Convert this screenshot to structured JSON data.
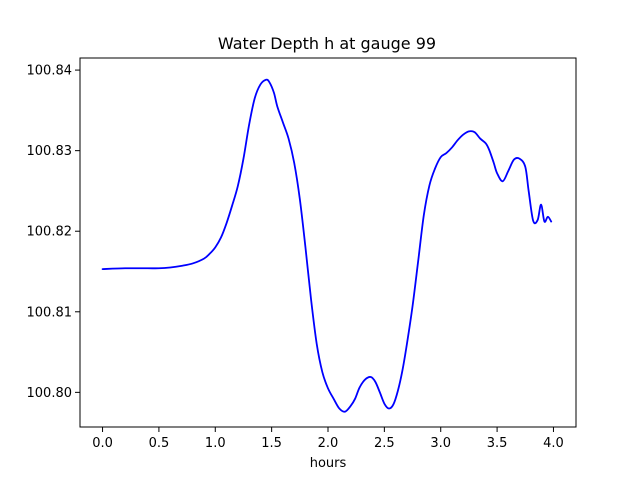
{
  "chart_data": {
    "type": "line",
    "title": "Water Depth h at gauge 99",
    "xlabel": "hours",
    "ylabel": "",
    "xlim": [
      -0.2,
      4.2
    ],
    "ylim": [
      100.7957,
      100.8415
    ],
    "xticks": [
      0.0,
      0.5,
      1.0,
      1.5,
      2.0,
      2.5,
      3.0,
      3.5,
      4.0
    ],
    "xtick_labels": [
      "0.0",
      "0.5",
      "1.0",
      "1.5",
      "2.0",
      "2.5",
      "3.0",
      "3.5",
      "4.0"
    ],
    "yticks": [
      100.8,
      100.81,
      100.82,
      100.83,
      100.84
    ],
    "ytick_labels": [
      "100.80",
      "100.81",
      "100.82",
      "100.83",
      "100.84"
    ],
    "grid": false,
    "series": [
      {
        "color": "#0000ff",
        "x": [
          0.0,
          0.2,
          0.4,
          0.5,
          0.6,
          0.7,
          0.8,
          0.9,
          0.95,
          1.0,
          1.05,
          1.1,
          1.15,
          1.2,
          1.25,
          1.3,
          1.35,
          1.4,
          1.45,
          1.48,
          1.52,
          1.55,
          1.6,
          1.65,
          1.7,
          1.75,
          1.8,
          1.85,
          1.9,
          1.95,
          2.0,
          2.05,
          2.1,
          2.15,
          2.2,
          2.24,
          2.28,
          2.33,
          2.38,
          2.42,
          2.46,
          2.5,
          2.54,
          2.58,
          2.62,
          2.66,
          2.7,
          2.75,
          2.8,
          2.85,
          2.9,
          2.95,
          3.0,
          3.05,
          3.1,
          3.15,
          3.2,
          3.25,
          3.3,
          3.35,
          3.4,
          3.43,
          3.47,
          3.5,
          3.55,
          3.6,
          3.65,
          3.7,
          3.75,
          3.78,
          3.82,
          3.86,
          3.89,
          3.92,
          3.95,
          3.98
        ],
        "y": [
          100.8153,
          100.8154,
          100.8154,
          100.8154,
          100.8155,
          100.8157,
          100.816,
          100.8166,
          100.8172,
          100.818,
          100.8192,
          100.821,
          100.8232,
          100.8256,
          100.829,
          100.8332,
          100.8365,
          100.8382,
          100.8388,
          100.8385,
          100.8372,
          100.8355,
          100.8335,
          100.8315,
          100.8285,
          100.824,
          100.818,
          100.8115,
          100.806,
          100.8025,
          100.8005,
          100.7992,
          100.798,
          100.7976,
          100.7983,
          100.7992,
          100.8006,
          100.8016,
          100.8019,
          100.8013,
          100.8,
          100.7986,
          100.798,
          100.7985,
          100.8002,
          100.8027,
          100.806,
          100.8107,
          100.8163,
          100.822,
          100.8257,
          100.8278,
          100.8292,
          100.8297,
          100.8304,
          100.8313,
          100.832,
          100.8324,
          100.8323,
          100.8315,
          100.8309,
          100.8301,
          100.8285,
          100.8272,
          100.8262,
          100.8275,
          100.8289,
          100.829,
          100.828,
          100.825,
          100.8213,
          100.8214,
          100.8233,
          100.8212,
          100.8218,
          100.8212
        ]
      }
    ]
  }
}
